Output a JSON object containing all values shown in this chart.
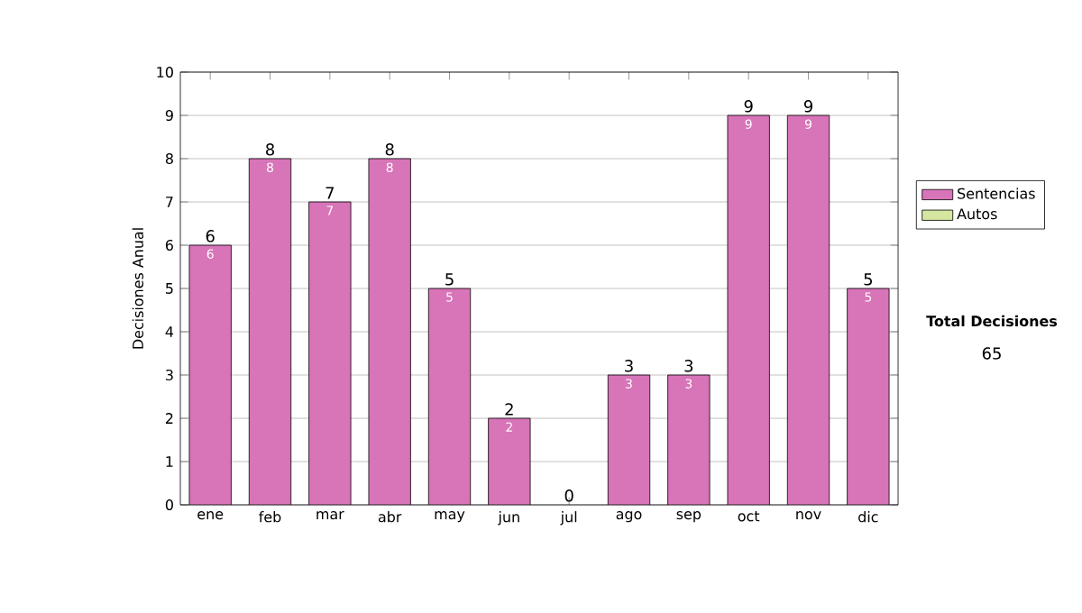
{
  "chart_data": {
    "type": "bar",
    "stacked": true,
    "ylabel": "Decisiones Anual",
    "categories": [
      "ene",
      "feb",
      "mar",
      "abr",
      "may",
      "jun",
      "jul",
      "ago",
      "sep",
      "oct",
      "nov",
      "dic"
    ],
    "series": [
      {
        "name": "Sentencias",
        "color": "#d874b8",
        "values": [
          6,
          8,
          7,
          8,
          5,
          2,
          0,
          3,
          3,
          9,
          9,
          5
        ],
        "value_labels": [
          "6",
          "8",
          "7",
          "8",
          "5",
          "2",
          null,
          "3",
          "3",
          "9",
          "9",
          "5"
        ]
      },
      {
        "name": "Autos",
        "color": "#d4e6a0",
        "values": [
          null,
          null,
          null,
          null,
          null,
          null,
          null,
          null,
          null,
          null,
          null,
          null
        ]
      }
    ],
    "totals": [
      "6",
      "8",
      "7",
      "8",
      "5",
      "2",
      "0",
      "3",
      "3",
      "9",
      "9",
      "5"
    ],
    "ylim": [
      0,
      10
    ],
    "yticks": [
      0,
      1,
      2,
      3,
      4,
      5,
      6,
      7,
      8,
      9,
      10
    ],
    "grid": "y",
    "legend": "right",
    "annotations": [
      "Total Decisiones",
      "65"
    ]
  }
}
